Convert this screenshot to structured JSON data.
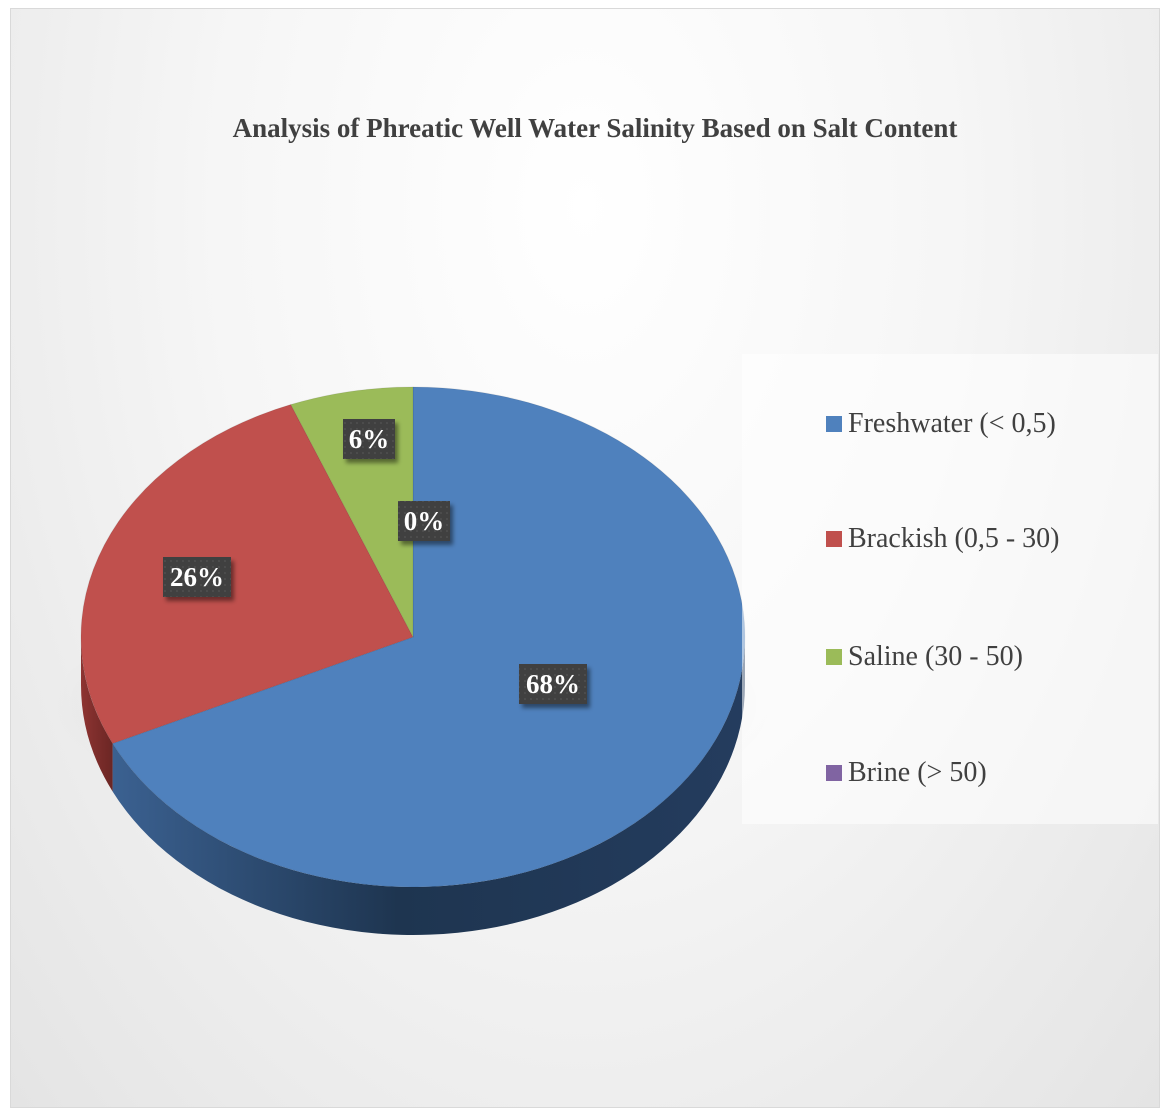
{
  "chart_data": {
    "type": "pie",
    "title": "Analysis of Phreatic Well Water Salinity Based on Salt Content",
    "categories": [
      "Freshwater (< 0,5)",
      "Brackish (0,5 - 30)",
      "Saline (30 - 50)",
      "Brine (> 50)"
    ],
    "values": [
      68,
      26,
      6,
      0
    ],
    "data_labels": [
      "68%",
      "26%",
      "6%",
      "0%"
    ],
    "colors": [
      "#4f81bd",
      "#c0504d",
      "#9bbb59",
      "#8064a2"
    ],
    "legend": "right",
    "style": "3d"
  }
}
